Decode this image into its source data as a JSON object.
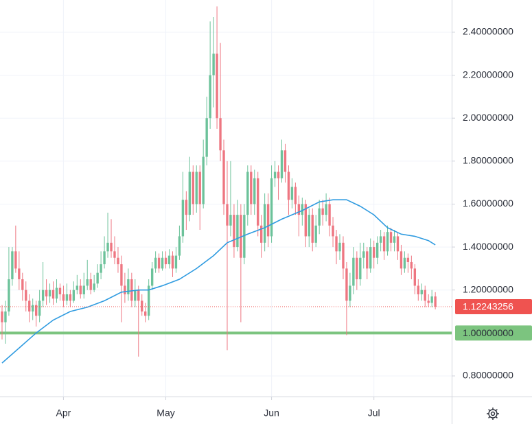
{
  "chart_data": {
    "type": "candlestick",
    "xlim": [
      -0.6,
      131.8
    ],
    "xticks": [
      {
        "value": 18,
        "label": "Apr"
      },
      {
        "value": 48,
        "label": "May"
      },
      {
        "value": 79,
        "label": "Jun"
      },
      {
        "value": 109,
        "label": "Jul"
      }
    ],
    "ylim": [
      0.704,
      2.55
    ],
    "yticks": [
      {
        "value": 0.8,
        "label": "0.80000000"
      },
      {
        "value": 1.2,
        "label": "1.20000000"
      },
      {
        "value": 1.4,
        "label": "1.40000000"
      },
      {
        "value": 1.6,
        "label": "1.60000000"
      },
      {
        "value": 1.8,
        "label": "1.80000000"
      },
      {
        "value": 2.0,
        "label": "2.00000000"
      },
      {
        "value": 2.2,
        "label": "2.20000000"
      },
      {
        "value": 2.4,
        "label": "2.40000000"
      }
    ],
    "grid": true,
    "up_color": "#6cc29a",
    "down_color": "#ee7681",
    "open": [
      1.1,
      1.05,
      1.1,
      1.25,
      1.38,
      1.3,
      1.25,
      1.2,
      1.15,
      1.1,
      1.13,
      1.08,
      1.15,
      1.2,
      1.17,
      1.2,
      1.16,
      1.21,
      1.18,
      1.15,
      1.18,
      1.15,
      1.2,
      1.22,
      1.18,
      1.22,
      1.25,
      1.2,
      1.23,
      1.28,
      1.32,
      1.38,
      1.42,
      1.38,
      1.35,
      1.32,
      1.22,
      1.18,
      1.25,
      1.15,
      1.2,
      1.15,
      1.1,
      1.08,
      1.22,
      1.3,
      1.35,
      1.3,
      1.35,
      1.32,
      1.36,
      1.3,
      1.36,
      1.45,
      1.62,
      1.55,
      1.75,
      1.6,
      1.75,
      1.6,
      1.82,
      2.0,
      2.2,
      2.3,
      2.0,
      1.85,
      1.6,
      1.5,
      1.55,
      1.4,
      1.55,
      1.35,
      1.55,
      1.75,
      1.6,
      1.72,
      1.5,
      1.42,
      1.6,
      1.45,
      1.72,
      1.75,
      1.72,
      1.85,
      1.75,
      1.62,
      1.68,
      1.6,
      1.55,
      1.6,
      1.45,
      1.55,
      1.42,
      1.5,
      1.58,
      1.55,
      1.6,
      1.5,
      1.45,
      1.38,
      1.42,
      1.3,
      1.15,
      1.22,
      1.35,
      1.25,
      1.35,
      1.38,
      1.3,
      1.4,
      1.35,
      1.42,
      1.45,
      1.38,
      1.47,
      1.42,
      1.45,
      1.38,
      1.3,
      1.35,
      1.33,
      1.3,
      1.22,
      1.18,
      1.2,
      1.15,
      1.14,
      1.17
    ],
    "high": [
      1.13,
      1.15,
      1.4,
      1.4,
      1.5,
      1.38,
      1.28,
      1.24,
      1.18,
      1.16,
      1.15,
      1.2,
      1.33,
      1.25,
      1.23,
      1.24,
      1.25,
      1.23,
      1.22,
      1.23,
      1.2,
      1.24,
      1.27,
      1.25,
      1.28,
      1.34,
      1.28,
      1.27,
      1.32,
      1.38,
      1.45,
      1.56,
      1.53,
      1.45,
      1.4,
      1.36,
      1.28,
      1.3,
      1.28,
      1.25,
      1.22,
      1.18,
      1.14,
      1.25,
      1.33,
      1.38,
      1.37,
      1.38,
      1.38,
      1.39,
      1.38,
      1.4,
      1.5,
      1.75,
      1.66,
      1.82,
      1.78,
      1.78,
      1.78,
      1.9,
      2.1,
      2.45,
      2.47,
      2.52,
      2.35,
      1.9,
      1.8,
      1.8,
      1.6,
      1.62,
      1.6,
      1.6,
      1.78,
      1.78,
      1.76,
      1.75,
      1.55,
      1.65,
      1.65,
      1.78,
      1.8,
      1.78,
      1.9,
      1.88,
      1.78,
      1.72,
      1.7,
      1.64,
      1.63,
      1.62,
      1.58,
      1.58,
      1.55,
      1.62,
      1.62,
      1.65,
      1.63,
      1.54,
      1.48,
      1.46,
      1.45,
      1.33,
      1.28,
      1.4,
      1.38,
      1.42,
      1.42,
      1.4,
      1.44,
      1.43,
      1.45,
      1.48,
      1.47,
      1.5,
      1.49,
      1.48,
      1.47,
      1.41,
      1.38,
      1.37,
      1.36,
      1.32,
      1.25,
      1.23,
      1.22,
      1.18,
      1.2,
      1.19
    ],
    "low": [
      0.97,
      0.95,
      1.08,
      1.22,
      1.28,
      1.2,
      1.15,
      1.1,
      1.05,
      1.06,
      1.03,
      1.05,
      1.12,
      1.13,
      1.14,
      1.13,
      1.14,
      1.15,
      1.12,
      1.13,
      1.12,
      1.14,
      1.18,
      1.16,
      1.16,
      1.2,
      1.18,
      1.19,
      1.21,
      1.25,
      1.3,
      1.35,
      1.35,
      1.32,
      1.28,
      1.05,
      1.14,
      1.15,
      1.12,
      1.12,
      0.89,
      1.08,
      1.05,
      1.06,
      1.2,
      1.28,
      1.28,
      1.29,
      1.3,
      1.3,
      1.26,
      1.28,
      1.34,
      1.42,
      1.48,
      1.52,
      1.55,
      1.56,
      1.48,
      1.58,
      1.78,
      1.95,
      2.05,
      1.95,
      1.8,
      1.55,
      0.92,
      1.45,
      1.35,
      1.38,
      1.05,
      1.32,
      1.5,
      1.55,
      1.55,
      1.45,
      1.35,
      1.38,
      1.4,
      1.42,
      1.68,
      1.62,
      1.7,
      1.7,
      1.55,
      1.58,
      1.55,
      1.45,
      1.5,
      1.4,
      1.4,
      1.38,
      1.4,
      1.46,
      1.5,
      1.52,
      1.45,
      1.4,
      1.32,
      1.34,
      1.25,
      0.99,
      1.12,
      1.18,
      1.2,
      1.22,
      1.3,
      1.25,
      1.28,
      1.3,
      1.32,
      1.38,
      1.34,
      1.36,
      1.38,
      1.38,
      1.34,
      1.27,
      1.28,
      1.28,
      1.25,
      1.18,
      1.15,
      1.15,
      1.12,
      1.12,
      1.12,
      1.11
    ],
    "close": [
      1.05,
      1.1,
      1.25,
      1.38,
      1.3,
      1.25,
      1.2,
      1.15,
      1.1,
      1.13,
      1.08,
      1.15,
      1.2,
      1.17,
      1.2,
      1.16,
      1.21,
      1.18,
      1.15,
      1.18,
      1.15,
      1.2,
      1.22,
      1.18,
      1.22,
      1.25,
      1.2,
      1.23,
      1.28,
      1.32,
      1.38,
      1.42,
      1.38,
      1.35,
      1.32,
      1.22,
      1.18,
      1.25,
      1.15,
      1.2,
      1.15,
      1.1,
      1.08,
      1.22,
      1.3,
      1.35,
      1.3,
      1.35,
      1.32,
      1.36,
      1.3,
      1.36,
      1.45,
      1.62,
      1.55,
      1.75,
      1.6,
      1.75,
      1.6,
      1.82,
      2.0,
      2.2,
      2.3,
      2.0,
      1.85,
      1.6,
      1.5,
      1.55,
      1.4,
      1.55,
      1.35,
      1.55,
      1.75,
      1.6,
      1.72,
      1.5,
      1.42,
      1.6,
      1.45,
      1.72,
      1.75,
      1.72,
      1.85,
      1.75,
      1.62,
      1.68,
      1.6,
      1.55,
      1.6,
      1.45,
      1.55,
      1.42,
      1.5,
      1.58,
      1.55,
      1.6,
      1.5,
      1.45,
      1.38,
      1.42,
      1.3,
      1.15,
      1.22,
      1.35,
      1.25,
      1.35,
      1.38,
      1.3,
      1.4,
      1.35,
      1.42,
      1.45,
      1.38,
      1.47,
      1.42,
      1.45,
      1.38,
      1.3,
      1.35,
      1.33,
      1.3,
      1.22,
      1.18,
      1.2,
      1.15,
      1.14,
      1.17,
      1.12243256
    ],
    "moving_average": {
      "color": "#2f9be0",
      "x": [
        0,
        5,
        10,
        15,
        20,
        25,
        30,
        35,
        40,
        43,
        47,
        52,
        57,
        62,
        66,
        72,
        77,
        82,
        88,
        93,
        97,
        101,
        105,
        109,
        113,
        117,
        121,
        125,
        127
      ],
      "values": [
        0.86,
        0.93,
        1.0,
        1.06,
        1.1,
        1.12,
        1.15,
        1.19,
        1.2,
        1.2,
        1.22,
        1.25,
        1.3,
        1.36,
        1.42,
        1.46,
        1.49,
        1.53,
        1.57,
        1.61,
        1.62,
        1.62,
        1.59,
        1.55,
        1.49,
        1.46,
        1.45,
        1.43,
        1.41
      ]
    },
    "hline": {
      "value": 1,
      "label": "1.00000000",
      "color": "#7cc47f"
    },
    "last_price_color": "#ef5350"
  }
}
